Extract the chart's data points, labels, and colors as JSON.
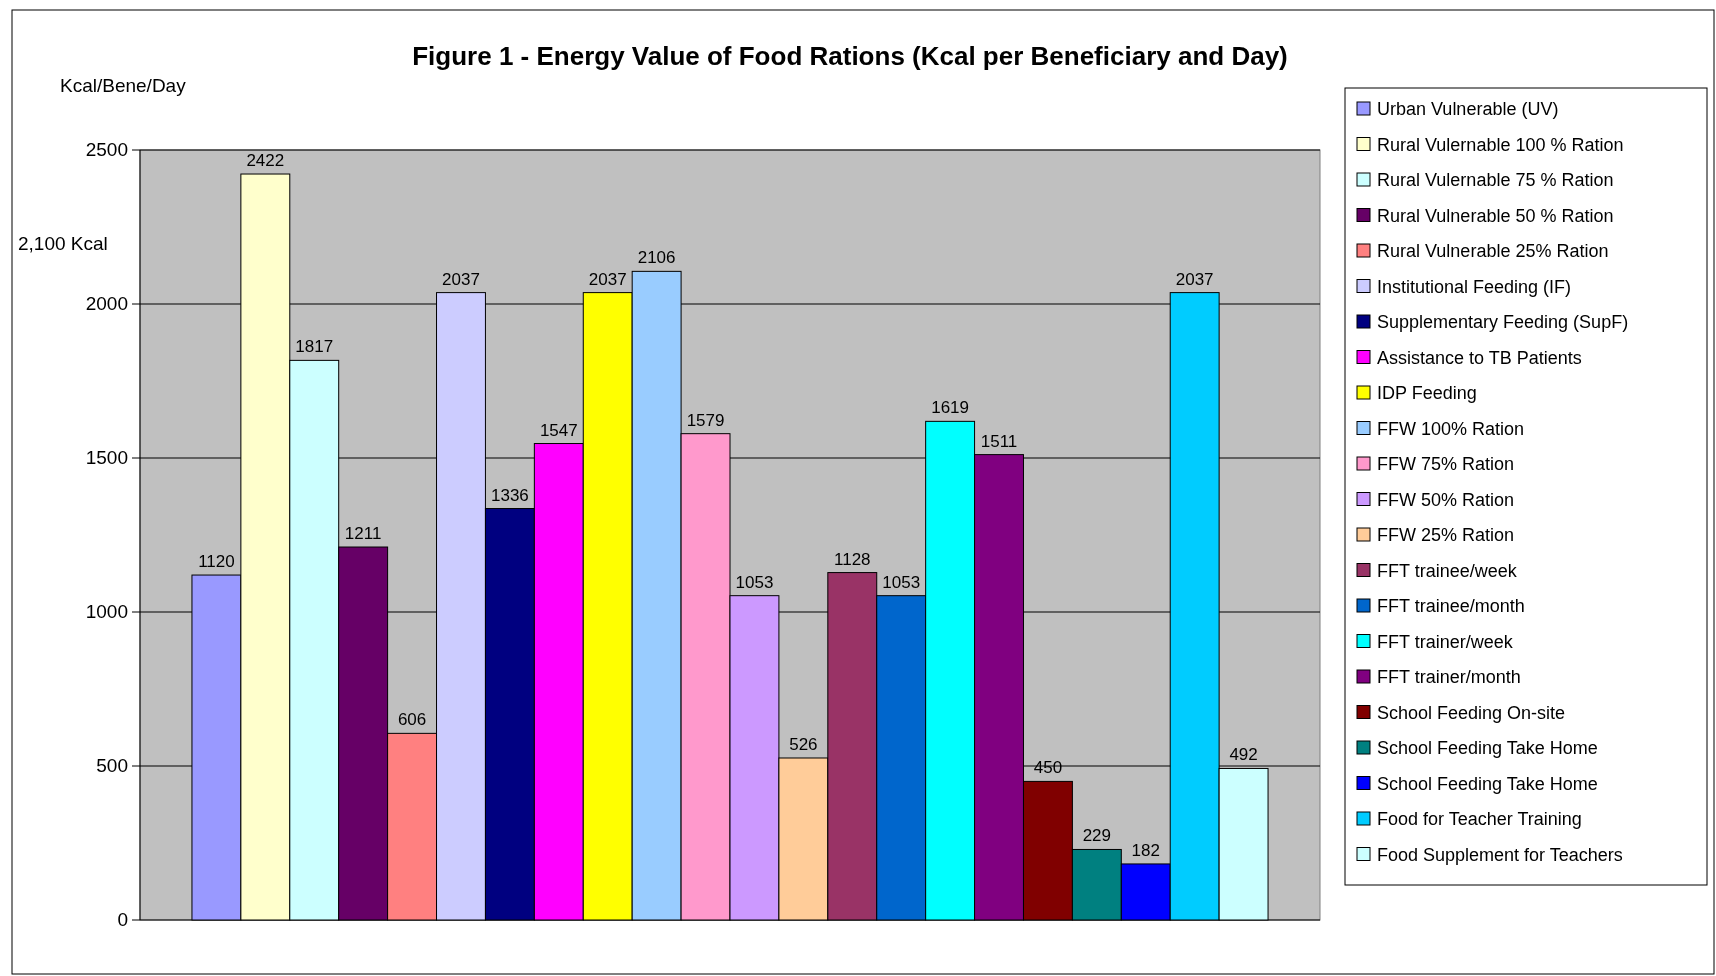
{
  "chart_data": {
    "type": "bar",
    "title": "Figure 1 - Energy Value of Food Rations (Kcal per Beneficiary and Day)",
    "ylabel": "Kcal/Bene/Day",
    "categories": [
      null
    ],
    "series": [
      {
        "name": "Urban Vulnerable (UV)",
        "color": "#9999ff",
        "values": [
          1120
        ]
      },
      {
        "name": "Rural Vulernable 100 % Ration",
        "color": "#ffffcc",
        "values": [
          2422
        ]
      },
      {
        "name": "Rural Vulernable 75 % Ration",
        "color": "#ccffff",
        "values": [
          1817
        ]
      },
      {
        "name": "Rural Vulnerable 50 % Ration",
        "color": "#660066",
        "values": [
          1211
        ]
      },
      {
        "name": "Rural Vulnerable 25% Ration",
        "color": "#ff8080",
        "values": [
          606
        ]
      },
      {
        "name": "Institutional Feeding (IF)",
        "color": "#ccccff",
        "values": [
          2037
        ]
      },
      {
        "name": "Supplementary Feeding (SupF)",
        "color": "#000080",
        "values": [
          1336
        ]
      },
      {
        "name": "Assistance to TB Patients",
        "color": "#ff00ff",
        "values": [
          1547
        ]
      },
      {
        "name": "IDP Feeding",
        "color": "#ffff00",
        "values": [
          2037
        ]
      },
      {
        "name": "FFW 100% Ration",
        "color": "#99ccff",
        "values": [
          2106
        ]
      },
      {
        "name": "FFW 75% Ration",
        "color": "#ff99cc",
        "values": [
          1579
        ]
      },
      {
        "name": "FFW 50% Ration",
        "color": "#cc99ff",
        "values": [
          1053
        ]
      },
      {
        "name": "FFW 25% Ration",
        "color": "#ffcc99",
        "values": [
          526
        ]
      },
      {
        "name": "FFT trainee/week",
        "color": "#993366",
        "values": [
          1128
        ]
      },
      {
        "name": "FFT trainee/month",
        "color": "#0066cc",
        "values": [
          1053
        ]
      },
      {
        "name": "FFT trainer/week",
        "color": "#00ffff",
        "values": [
          1619
        ]
      },
      {
        "name": "FFT trainer/month",
        "color": "#800080",
        "values": [
          1511
        ]
      },
      {
        "name": "School Feeding On-site",
        "color": "#800000",
        "values": [
          450
        ]
      },
      {
        "name": "School Feeding Take Home",
        "color": "#008080",
        "values": [
          229
        ]
      },
      {
        "name": "School Feeding Take Home",
        "color": "#0000ff",
        "values": [
          182
        ]
      },
      {
        "name": "Food for Teacher Training",
        "color": "#00ccff",
        "values": [
          2037
        ]
      },
      {
        "name": "Food Supplement for Teachers",
        "color": "#ccffff",
        "values": [
          492
        ]
      }
    ],
    "ylim": [
      0,
      2500
    ],
    "yticks": [
      0,
      500,
      1000,
      1500,
      2000,
      2500
    ],
    "grid": "y",
    "legend": "right",
    "data_labels": true,
    "annotations": [
      "2,100 Kcal"
    ]
  }
}
